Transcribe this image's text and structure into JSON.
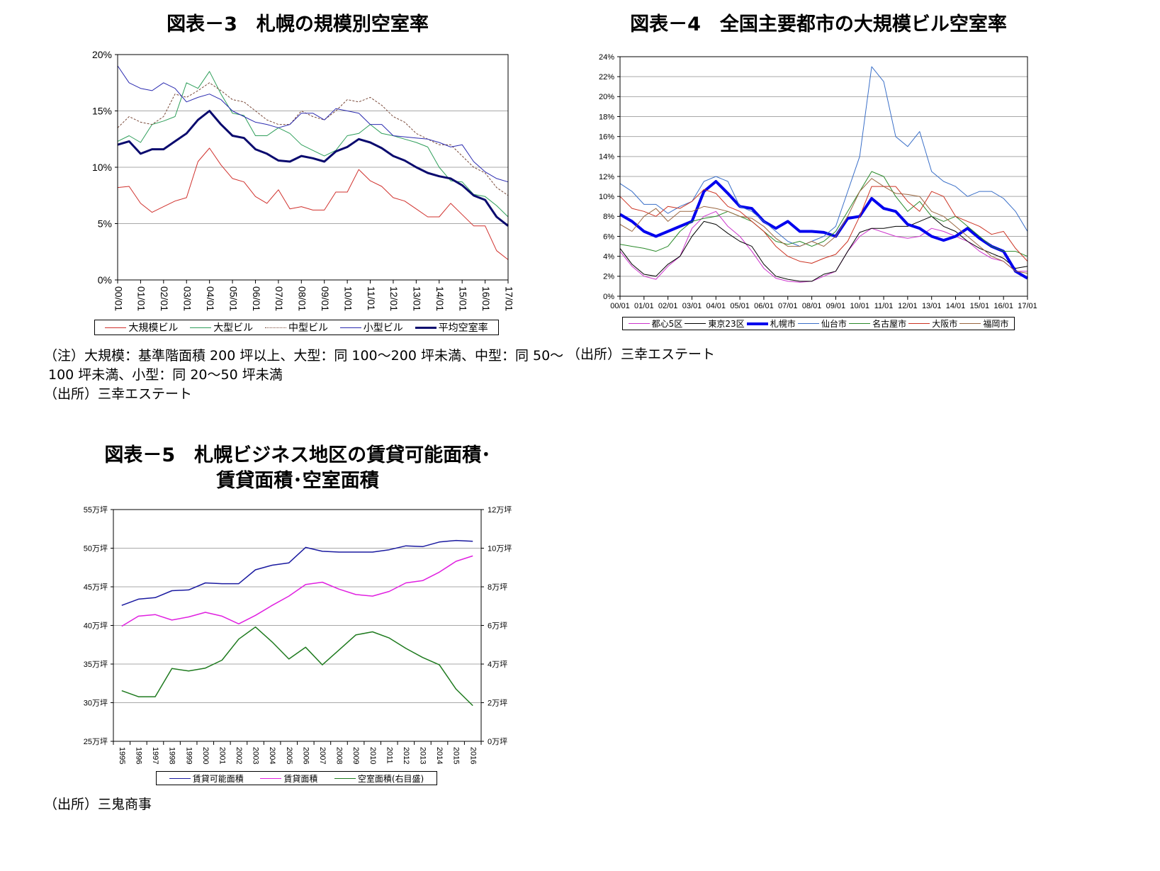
{
  "titles": {
    "chart3": "図表－3　札幌の規模別空室率",
    "chart4": "図表－4　全国主要都市の大規模ビル空室率",
    "chart5_line1": "図表－5　札幌ビジネス地区の賃貸可能面積･",
    "chart5_line2": "賃貸面積･空室面積"
  },
  "notes": {
    "chart3_note_line1": "（注）大規模：基準階面積 200 坪以上、大型：同 100～200 坪未満、中型：同 50～",
    "chart3_note_line2": "100 坪未満、小型：同 20～50 坪未満",
    "chart3_source": "（出所）三幸エステート",
    "chart4_source": "（出所）三幸エステート",
    "chart5_source": "（出所）三鬼商事"
  },
  "chart_data": [
    {
      "id": "chart3",
      "type": "line",
      "title": "図表－3　札幌の規模別空室率",
      "xlabel": "",
      "ylabel": "",
      "ylim": [
        0,
        20
      ],
      "xlim": [
        0,
        17
      ],
      "y_ticks": [
        0,
        5,
        10,
        15,
        20
      ],
      "y_tick_labels": [
        "0%",
        "5%",
        "10%",
        "15%",
        "20%"
      ],
      "x_tick_labels": [
        "00/01",
        "01/01",
        "02/01",
        "03/01",
        "04/01",
        "05/01",
        "06/01",
        "07/01",
        "08/01",
        "09/01",
        "10/01",
        "11/01",
        "12/01",
        "13/01",
        "14/01",
        "15/01",
        "16/01",
        "17/01"
      ],
      "grid": true,
      "legend_position": "bottom",
      "x_step": 0.5,
      "series": [
        {
          "name": "大規模ビル",
          "color": "#d0312d",
          "width": 1,
          "dash": "",
          "values": [
            8.2,
            8.3,
            6.8,
            6.0,
            6.5,
            7.0,
            7.3,
            10.5,
            11.7,
            10.2,
            9.0,
            8.7,
            7.4,
            6.8,
            8.0,
            6.3,
            6.5,
            6.2,
            6.2,
            7.8,
            7.8,
            9.8,
            8.8,
            8.3,
            7.3,
            7.0,
            6.3,
            5.6,
            5.6,
            6.8,
            5.8,
            4.8,
            4.8,
            2.6,
            1.8
          ]
        },
        {
          "name": "大型ビル",
          "color": "#2e9e5a",
          "width": 1,
          "dash": "",
          "values": [
            12.3,
            12.8,
            12.2,
            13.8,
            14.1,
            14.5,
            17.5,
            17.0,
            18.5,
            16.5,
            14.8,
            14.6,
            12.8,
            12.8,
            13.5,
            13.0,
            12.0,
            11.5,
            11.0,
            11.5,
            12.8,
            13.0,
            13.8,
            13.0,
            12.8,
            12.5,
            12.2,
            11.8,
            10.0,
            8.8,
            8.7,
            7.6,
            7.4,
            6.6,
            5.6
          ]
        },
        {
          "name": "中型ビル",
          "color": "#7a4a3a",
          "width": 1,
          "dash": "3,2",
          "values": [
            13.5,
            14.5,
            14.0,
            13.8,
            14.5,
            16.5,
            16.2,
            16.8,
            17.5,
            16.8,
            16.0,
            15.8,
            15.0,
            14.2,
            13.8,
            13.8,
            15.0,
            14.5,
            14.2,
            15.0,
            16.0,
            15.8,
            16.2,
            15.5,
            14.5,
            14.0,
            13.0,
            12.5,
            12.0,
            12.0,
            11.0,
            10.0,
            9.5,
            8.2,
            7.5
          ]
        },
        {
          "name": "小型ビル",
          "color": "#2b2bb0",
          "width": 1,
          "dash": "",
          "values": [
            19.0,
            17.5,
            17.0,
            16.8,
            17.5,
            17.0,
            15.8,
            16.2,
            16.5,
            16.0,
            15.0,
            14.5,
            14.0,
            13.8,
            13.5,
            13.8,
            14.8,
            14.8,
            14.2,
            15.2,
            15.0,
            14.8,
            13.8,
            13.8,
            12.8,
            12.7,
            12.6,
            12.5,
            12.2,
            11.8,
            12.0,
            10.5,
            9.6,
            9.0,
            8.7
          ]
        },
        {
          "name": "平均空室率",
          "color": "#0a0a6e",
          "width": 3,
          "dash": "",
          "values": [
            12.0,
            12.3,
            11.2,
            11.6,
            11.6,
            12.3,
            13.0,
            14.2,
            15.0,
            13.8,
            12.8,
            12.6,
            11.6,
            11.2,
            10.6,
            10.5,
            11.0,
            10.8,
            10.5,
            11.4,
            11.8,
            12.5,
            12.2,
            11.7,
            11.0,
            10.6,
            10.0,
            9.5,
            9.2,
            9.0,
            8.4,
            7.5,
            7.1,
            5.6,
            4.8
          ]
        }
      ]
    },
    {
      "id": "chart4",
      "type": "line",
      "title": "図表－4　全国主要都市の大規模ビル空室率",
      "xlabel": "",
      "ylabel": "",
      "ylim": [
        0,
        24
      ],
      "xlim": [
        0,
        17
      ],
      "y_ticks": [
        0,
        2,
        4,
        6,
        8,
        10,
        12,
        14,
        16,
        18,
        20,
        22,
        24
      ],
      "y_tick_labels": [
        "0%",
        "2%",
        "4%",
        "6%",
        "8%",
        "10%",
        "12%",
        "14%",
        "16%",
        "18%",
        "20%",
        "22%",
        "24%"
      ],
      "x_tick_labels": [
        "00/01",
        "01/01",
        "02/01",
        "03/01",
        "04/01",
        "05/01",
        "06/01",
        "07/01",
        "08/01",
        "09/01",
        "10/01",
        "11/01",
        "12/01",
        "13/01",
        "14/01",
        "15/01",
        "16/01",
        "17/01"
      ],
      "grid": true,
      "legend_position": "bottom",
      "x_step": 0.5,
      "series": [
        {
          "name": "都心5区",
          "color": "#cc33cc",
          "width": 1,
          "dash": "",
          "values": [
            4.5,
            3.0,
            2.0,
            1.7,
            3.0,
            4.0,
            6.8,
            8.0,
            8.5,
            7.0,
            6.0,
            4.5,
            2.8,
            1.8,
            1.5,
            1.4,
            1.5,
            2.0,
            2.5,
            4.5,
            6.0,
            6.8,
            6.4,
            6.0,
            5.8,
            6.0,
            6.8,
            6.5,
            6.0,
            5.5,
            4.5,
            3.8,
            3.5,
            2.5,
            2.5
          ]
        },
        {
          "name": "東京23区",
          "color": "#000000",
          "width": 1,
          "dash": "",
          "values": [
            4.8,
            3.2,
            2.2,
            2.0,
            3.2,
            4.0,
            6.0,
            7.5,
            7.2,
            6.3,
            5.5,
            5.0,
            3.2,
            2.0,
            1.7,
            1.5,
            1.5,
            2.2,
            2.5,
            4.5,
            6.4,
            6.8,
            6.8,
            7.0,
            7.0,
            7.5,
            8.0,
            7.0,
            6.5,
            5.5,
            4.8,
            4.3,
            3.8,
            2.8,
            3.0
          ]
        },
        {
          "name": "札幌市",
          "color": "#0000ee",
          "width": 4,
          "dash": "",
          "values": [
            8.2,
            7.5,
            6.5,
            6.0,
            6.5,
            7.0,
            7.5,
            10.5,
            11.5,
            10.3,
            9.0,
            8.8,
            7.5,
            6.8,
            7.5,
            6.5,
            6.5,
            6.4,
            6.0,
            7.8,
            8.0,
            9.8,
            8.8,
            8.5,
            7.2,
            6.8,
            6.0,
            5.6,
            6.0,
            6.8,
            5.8,
            5.0,
            4.5,
            2.5,
            1.8
          ]
        },
        {
          "name": "仙台市",
          "color": "#3a6fc8",
          "width": 1,
          "dash": "",
          "values": [
            11.3,
            10.5,
            9.2,
            9.2,
            8.3,
            9.0,
            9.5,
            11.5,
            12.0,
            11.5,
            9.0,
            8.5,
            7.5,
            6.5,
            5.5,
            5.0,
            5.5,
            6.0,
            7.0,
            10.5,
            14.0,
            23.0,
            21.5,
            16.0,
            15.0,
            16.5,
            12.5,
            11.5,
            11.0,
            10.0,
            10.5,
            10.5,
            9.8,
            8.5,
            6.5
          ]
        },
        {
          "name": "名古屋市",
          "color": "#2a8a2a",
          "width": 1,
          "dash": "",
          "values": [
            5.2,
            5.0,
            4.8,
            4.5,
            5.0,
            6.5,
            7.5,
            7.8,
            8.0,
            8.5,
            8.0,
            7.5,
            6.5,
            5.5,
            5.2,
            5.5,
            5.0,
            5.5,
            6.5,
            8.5,
            10.5,
            12.5,
            12.0,
            10.0,
            8.5,
            9.5,
            8.0,
            7.5,
            8.0,
            7.0,
            6.0,
            5.0,
            4.5,
            4.5,
            4.0
          ]
        },
        {
          "name": "大阪市",
          "color": "#cc3322",
          "width": 1,
          "dash": "",
          "values": [
            10.0,
            8.8,
            8.5,
            8.0,
            9.0,
            8.8,
            9.5,
            10.7,
            10.3,
            9.0,
            8.5,
            7.5,
            6.5,
            5.0,
            4.0,
            3.5,
            3.3,
            3.8,
            4.2,
            5.5,
            8.0,
            11.0,
            11.0,
            11.0,
            9.5,
            8.5,
            10.5,
            10.0,
            8.0,
            7.5,
            7.0,
            6.2,
            6.5,
            4.8,
            3.5
          ]
        },
        {
          "name": "福岡市",
          "color": "#9a6640",
          "width": 1,
          "dash": "",
          "values": [
            7.2,
            6.5,
            8.0,
            8.8,
            7.5,
            8.5,
            8.5,
            9.0,
            8.8,
            8.5,
            8.0,
            7.8,
            7.0,
            5.8,
            5.0,
            5.0,
            5.5,
            5.0,
            6.0,
            8.0,
            10.5,
            11.8,
            11.0,
            10.3,
            10.2,
            10.0,
            8.5,
            8.0,
            7.0,
            6.0,
            5.0,
            4.0,
            3.5,
            2.5,
            2.3
          ]
        }
      ]
    },
    {
      "id": "chart5",
      "type": "line",
      "title": "図表－5　札幌ビジネス地区の賃貸可能面積･賃貸面積･空室面積",
      "xlabel": "",
      "ylabel": "",
      "categories": [
        "1995",
        "1996",
        "1997",
        "1998",
        "1999",
        "2000",
        "2001",
        "2002",
        "2003",
        "2004",
        "2005",
        "2006",
        "2007",
        "2008",
        "2009",
        "2010",
        "2011",
        "2012",
        "2013",
        "2014",
        "2015",
        "2016"
      ],
      "ylim": [
        25,
        55
      ],
      "y2lim": [
        0,
        12
      ],
      "y_ticks": [
        25,
        30,
        35,
        40,
        45,
        50,
        55
      ],
      "y_tick_labels": [
        "25万坪",
        "30万坪",
        "35万坪",
        "40万坪",
        "45万坪",
        "50万坪",
        "55万坪"
      ],
      "y2_ticks": [
        0,
        2,
        4,
        6,
        8,
        10,
        12
      ],
      "y2_tick_labels": [
        "0万坪",
        "2万坪",
        "4万坪",
        "6万坪",
        "8万坪",
        "10万坪",
        "12万坪"
      ],
      "grid": true,
      "legend_position": "bottom",
      "series": [
        {
          "name": "賃貸可能面積",
          "color": "#1a1aa0",
          "width": 1.5,
          "axis": "left",
          "values": [
            42.6,
            43.4,
            43.6,
            44.5,
            44.6,
            45.5,
            45.4,
            45.4,
            47.2,
            47.8,
            48.1,
            50.1,
            49.6,
            49.5,
            49.5,
            49.5,
            49.8,
            50.3,
            50.2,
            50.8,
            51.0,
            50.9
          ]
        },
        {
          "name": "賃貸面積",
          "color": "#e020e0",
          "width": 1.5,
          "axis": "left",
          "values": [
            39.9,
            41.2,
            41.4,
            40.7,
            41.1,
            41.7,
            41.2,
            40.2,
            41.3,
            42.6,
            43.8,
            45.3,
            45.6,
            44.7,
            44.0,
            43.8,
            44.4,
            45.5,
            45.8,
            46.9,
            48.3,
            49.0
          ]
        },
        {
          "name": "空室面積(右目盛)",
          "color": "#1e7a1e",
          "width": 1.5,
          "axis": "right",
          "values": [
            2.62,
            2.31,
            2.31,
            3.77,
            3.64,
            3.79,
            4.2,
            5.29,
            5.92,
            5.14,
            4.26,
            4.87,
            3.96,
            4.73,
            5.51,
            5.67,
            5.35,
            4.81,
            4.34,
            3.96,
            2.7,
            1.85
          ]
        }
      ]
    }
  ]
}
